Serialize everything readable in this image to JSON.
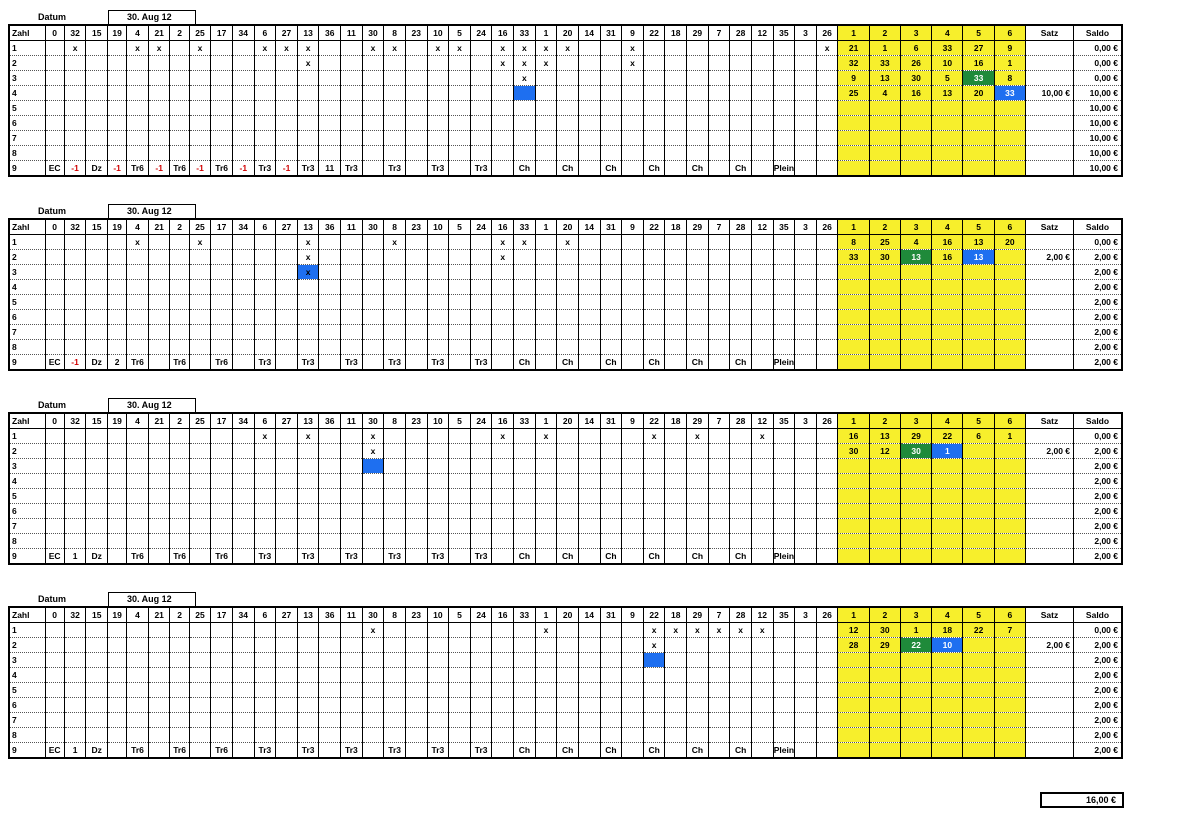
{
  "header_cols": [
    "Zahl",
    "0",
    "32",
    "15",
    "19",
    "4",
    "21",
    "2",
    "25",
    "17",
    "34",
    "6",
    "27",
    "13",
    "36",
    "11",
    "30",
    "8",
    "23",
    "10",
    "5",
    "24",
    "16",
    "33",
    "1",
    "20",
    "14",
    "31",
    "9",
    "22",
    "18",
    "29",
    "7",
    "28",
    "12",
    "35",
    "3",
    "26",
    "1",
    "2",
    "3",
    "4",
    "5",
    "6",
    "Satz",
    "Saldo"
  ],
  "total": "16,00 €",
  "blocks": [
    {
      "datum_label": "Datum",
      "datum": "30. Aug 12",
      "marks": [
        [
          "32",
          "4",
          "21",
          "25",
          "6",
          "27",
          "13",
          "30",
          "8",
          "10",
          "5",
          "16",
          "33",
          "1",
          "20",
          "9",
          "26"
        ],
        [
          "13",
          "16",
          "33",
          "1",
          "9"
        ],
        [
          "33"
        ],
        [],
        [],
        [],
        [],
        []
      ],
      "hits": [
        [
          4,
          "33"
        ]
      ],
      "nums": [
        [
          "21",
          "1",
          "6",
          "33",
          "27",
          "9"
        ],
        [
          "32",
          "33",
          "26",
          "10",
          "16",
          "1"
        ],
        [
          "9",
          "13",
          "30",
          "5",
          "33",
          "8"
        ],
        [
          "25",
          "4",
          "16",
          "13",
          "20",
          "33"
        ]
      ],
      "greens": [
        [
          3,
          "5"
        ]
      ],
      "blues": [
        [
          4,
          "6"
        ]
      ],
      "satz": [
        "",
        "",
        "",
        "10,00 €",
        "",
        "",
        "",
        "",
        ""
      ],
      "saldo": [
        "0,00 €",
        "0,00 €",
        "0,00 €",
        "10,00 €",
        "10,00 €",
        "10,00 €",
        "10,00 €",
        "10,00 €",
        "10,00 €"
      ],
      "footer": [
        "9",
        "EC",
        "-1",
        "Dz",
        "-1",
        "Tr6",
        "-1",
        "Tr6",
        "-1",
        "Tr6",
        "-1",
        "Tr3",
        "-1",
        "Tr3",
        "11",
        "Tr3",
        "",
        "Tr3",
        "",
        "Tr3",
        "",
        "Tr3",
        "",
        "Ch",
        "",
        "Ch",
        "",
        "Ch",
        "",
        "Ch",
        "",
        "Ch",
        "",
        "Ch",
        "",
        "Plein",
        "",
        ""
      ]
    },
    {
      "datum_label": "Datum",
      "datum": "30. Aug 12",
      "marks": [
        [
          "4",
          "25",
          "13",
          "8",
          "16",
          "33",
          "20"
        ],
        [
          "13",
          "16"
        ],
        [
          "13"
        ],
        [],
        [],
        [],
        [],
        []
      ],
      "hits": [
        [
          3,
          "13"
        ]
      ],
      "nums": [
        [
          "8",
          "25",
          "4",
          "16",
          "13",
          "20"
        ],
        [
          "33",
          "30",
          "13",
          "16",
          "13",
          ""
        ]
      ],
      "greens": [
        [
          2,
          "3"
        ]
      ],
      "blues": [
        [
          2,
          "5"
        ]
      ],
      "satz": [
        "",
        "2,00 €",
        "",
        "",
        "",
        "",
        "",
        "",
        ""
      ],
      "saldo": [
        "0,00 €",
        "2,00 €",
        "2,00 €",
        "2,00 €",
        "2,00 €",
        "2,00 €",
        "2,00 €",
        "2,00 €",
        "2,00 €"
      ],
      "footer": [
        "9",
        "EC",
        "-1",
        "Dz",
        "2",
        "Tr6",
        "",
        "Tr6",
        "",
        "Tr6",
        "",
        "Tr3",
        "",
        "Tr3",
        "",
        "Tr3",
        "",
        "Tr3",
        "",
        "Tr3",
        "",
        "Tr3",
        "",
        "Ch",
        "",
        "Ch",
        "",
        "Ch",
        "",
        "Ch",
        "",
        "Ch",
        "",
        "Ch",
        "",
        "Plein",
        "",
        ""
      ]
    },
    {
      "datum_label": "Datum",
      "datum": "30. Aug 12",
      "marks": [
        [
          "6",
          "13",
          "30",
          "16",
          "1",
          "22",
          "29",
          "12"
        ],
        [
          "30"
        ],
        [],
        [],
        [],
        [],
        [],
        []
      ],
      "hits": [
        [
          3,
          "30"
        ]
      ],
      "nums": [
        [
          "16",
          "13",
          "29",
          "22",
          "6",
          "1"
        ],
        [
          "30",
          "12",
          "30",
          "1",
          "",
          ""
        ]
      ],
      "greens": [
        [
          2,
          "3"
        ]
      ],
      "blues": [
        [
          2,
          "4"
        ]
      ],
      "satz": [
        "",
        "2,00 €",
        "",
        "",
        "",
        "",
        "",
        "",
        ""
      ],
      "saldo": [
        "0,00 €",
        "2,00 €",
        "2,00 €",
        "2,00 €",
        "2,00 €",
        "2,00 €",
        "2,00 €",
        "2,00 €",
        "2,00 €"
      ],
      "footer": [
        "9",
        "EC",
        "1",
        "Dz",
        "",
        "Tr6",
        "",
        "Tr6",
        "",
        "Tr6",
        "",
        "Tr3",
        "",
        "Tr3",
        "",
        "Tr3",
        "",
        "Tr3",
        "",
        "Tr3",
        "",
        "Tr3",
        "",
        "Ch",
        "",
        "Ch",
        "",
        "Ch",
        "",
        "Ch",
        "",
        "Ch",
        "",
        "Ch",
        "",
        "Plein",
        "",
        ""
      ]
    },
    {
      "datum_label": "Datum",
      "datum": "30. Aug 12",
      "marks": [
        [
          "30",
          "1",
          "22",
          "18",
          "29",
          "7",
          "28",
          "12"
        ],
        [
          "22"
        ],
        [],
        [],
        [],
        [],
        [],
        []
      ],
      "hits": [
        [
          3,
          "22"
        ]
      ],
      "nums": [
        [
          "12",
          "30",
          "1",
          "18",
          "22",
          "7"
        ],
        [
          "28",
          "29",
          "22",
          "10",
          "",
          ""
        ]
      ],
      "greens": [
        [
          2,
          "3"
        ]
      ],
      "blues": [
        [
          2,
          "4"
        ]
      ],
      "satz": [
        "",
        "2,00 €",
        "",
        "",
        "",
        "",
        "",
        "",
        ""
      ],
      "saldo": [
        "0,00 €",
        "2,00 €",
        "2,00 €",
        "2,00 €",
        "2,00 €",
        "2,00 €",
        "2,00 €",
        "2,00 €",
        "2,00 €"
      ],
      "footer": [
        "9",
        "EC",
        "1",
        "Dz",
        "",
        "Tr6",
        "",
        "Tr6",
        "",
        "Tr6",
        "",
        "Tr3",
        "",
        "Tr3",
        "",
        "Tr3",
        "",
        "Tr3",
        "",
        "Tr3",
        "",
        "Tr3",
        "",
        "Ch",
        "",
        "Ch",
        "",
        "Ch",
        "",
        "Ch",
        "",
        "Ch",
        "",
        "Ch",
        "",
        "Plein",
        "",
        ""
      ]
    }
  ]
}
